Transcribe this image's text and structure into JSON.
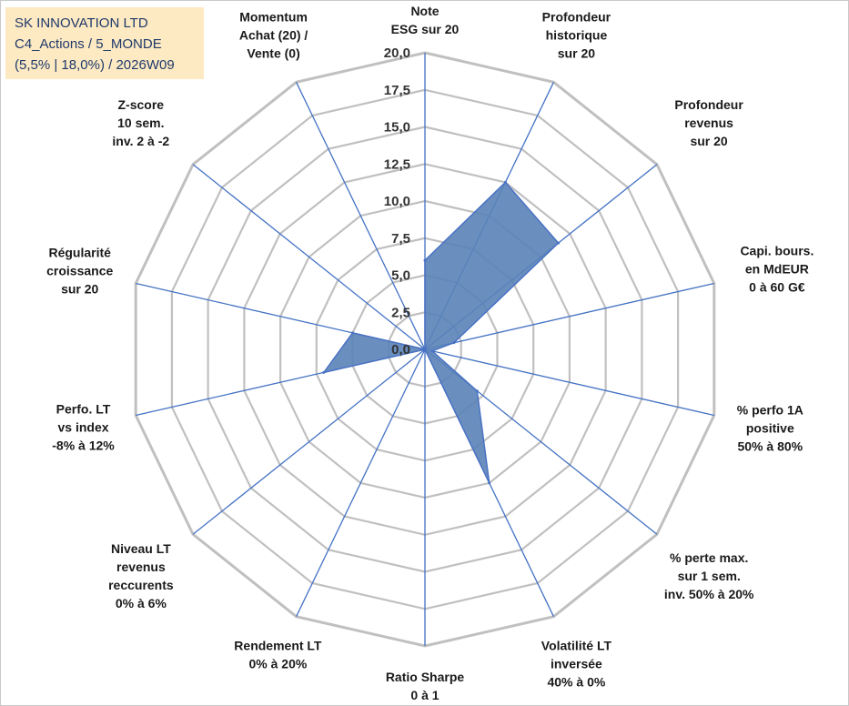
{
  "info": {
    "line1": "SK INNOVATION LTD",
    "line2": "C4_Actions / 5_MONDE",
    "line3": "(5,5% | 18,0%) / 2026W09"
  },
  "colors": {
    "grid": "#c0c0c0",
    "spoke": "#4472c4",
    "fill": "#5a83b8",
    "outline": "#4a72c4"
  },
  "chart_data": {
    "type": "radar",
    "title": "",
    "range": [
      0,
      20
    ],
    "tick_step": 2.5,
    "tick_labels": [
      "0,0",
      "2,5",
      "5,0",
      "7,5",
      "10,0",
      "12,5",
      "15,0",
      "17,5",
      "20,0"
    ],
    "axes": [
      {
        "label": [
          "Note",
          "ESG sur 20"
        ],
        "value": 6
      },
      {
        "label": [
          "Profondeur",
          "historique",
          "sur 20"
        ],
        "value": 12.5
      },
      {
        "label": [
          "Profondeur",
          "revenus",
          "sur 20"
        ],
        "value": 11.5
      },
      {
        "label": [
          "Capi. bours.",
          "en MdEUR",
          "0 à 60 G€"
        ],
        "value": 2
      },
      {
        "label": [
          "% perfo 1A",
          "positive",
          "50% à 80%"
        ],
        "value": 0.5
      },
      {
        "label": [
          "% perte max.",
          "sur 1 sem.",
          "inv. 50% à 20%"
        ],
        "value": 4.5
      },
      {
        "label": [
          "Volatilité LT",
          "inversée",
          "40% à 0%"
        ],
        "value": 10
      },
      {
        "label": [
          "Ratio Sharpe",
          "0 à 1"
        ],
        "value": 0
      },
      {
        "label": [
          "Rendement LT",
          "0% à 20%"
        ],
        "value": 0
      },
      {
        "label": [
          "Niveau LT",
          "revenus",
          "reccurents",
          "0% à 6%"
        ],
        "value": 0
      },
      {
        "label": [
          "Perfo. LT",
          "vs index",
          "-8% à 12%"
        ],
        "value": 7
      },
      {
        "label": [
          "Régularité",
          "croissance",
          "sur 20"
        ],
        "value": 5
      },
      {
        "label": [
          "Z-score",
          "10 sem.",
          "inv. 2 à -2"
        ],
        "value": 0
      },
      {
        "label": [
          "Momentum",
          "Achat (20) /",
          "Vente (0)"
        ],
        "value": 0
      }
    ]
  }
}
